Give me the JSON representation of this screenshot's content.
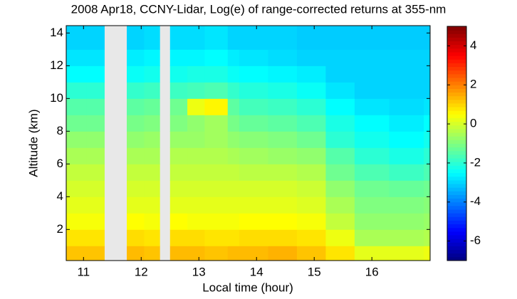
{
  "chart_data": {
    "type": "heatmap",
    "title": "2008 Apr18, CCNY-Lidar, Log(e) of range-corrected returns at 355-nm",
    "x_label": "Local time (hour)",
    "y_label": "Altitude (km)",
    "x_bins": [
      10.7,
      11.05,
      11.36,
      11.75,
      12.05,
      12.32,
      12.5,
      12.8,
      13.1,
      13.5,
      13.7,
      14.2,
      14.7,
      15.2,
      15.7,
      16.3,
      16.9,
      17.01
    ],
    "y_bins": [
      0.1,
      1,
      2,
      3,
      4,
      5,
      6,
      7,
      8,
      9,
      10,
      11,
      12,
      13,
      14.45
    ],
    "values": [
      [
        1.2,
        1.2,
        null,
        1.3,
        1.2,
        null,
        1.3,
        1.3,
        1.2,
        1.3,
        1.3,
        1.4,
        1.2,
        0.8,
        0.2,
        0.2,
        0.3
      ],
      [
        0.8,
        0.8,
        null,
        0.9,
        0.8,
        null,
        0.9,
        0.9,
        0.8,
        0.8,
        0.9,
        0.9,
        0.8,
        0.3,
        -0.5,
        -0.5,
        -0.4
      ],
      [
        0.4,
        0.4,
        null,
        0.5,
        0.4,
        null,
        0.5,
        0.4,
        0.4,
        0.4,
        0.5,
        0.5,
        0.4,
        -0.2,
        -0.8,
        -0.8,
        -0.7
      ],
      [
        0.2,
        0.2,
        null,
        0.2,
        0.2,
        null,
        0.2,
        0.2,
        0.2,
        0.2,
        0.2,
        0.2,
        0.1,
        -0.5,
        -1,
        -1,
        -0.9
      ],
      [
        0,
        0,
        null,
        0,
        0,
        null,
        0,
        0,
        0,
        0,
        0,
        0,
        -0.1,
        -0.8,
        -1.2,
        -1.3,
        -1.2
      ],
      [
        -0.2,
        -0.2,
        null,
        -0.2,
        -0.2,
        null,
        -0.2,
        -0.2,
        -0.2,
        -0.2,
        -0.3,
        -0.3,
        -0.4,
        -1.2,
        -1.6,
        -1.8,
        -1.6
      ],
      [
        -0.5,
        -0.5,
        null,
        -0.5,
        -0.5,
        null,
        -0.4,
        -0.4,
        -0.4,
        -0.5,
        -0.6,
        -0.7,
        -0.8,
        -1.5,
        -2,
        -2.2,
        -2
      ],
      [
        -0.8,
        -0.8,
        null,
        -0.8,
        -0.7,
        null,
        -0.7,
        -0.7,
        -0.6,
        -0.8,
        -0.9,
        -1,
        -1.2,
        -2,
        -2.3,
        -2.5,
        -2.3
      ],
      [
        -1.2,
        -1.2,
        null,
        -1.1,
        -1,
        null,
        -1,
        -0.8,
        -0.6,
        -1.1,
        -1.3,
        -1.4,
        -1.6,
        -2.2,
        -2.5,
        -2.7,
        -2.5
      ],
      [
        -1.5,
        -1.5,
        null,
        -1.4,
        -1.3,
        null,
        -1.2,
        0.3,
        0.6,
        -1.4,
        -1.7,
        -1.8,
        -2,
        -2.5,
        -2.8,
        -2.9,
        -2.8
      ],
      [
        -2,
        -2,
        null,
        -1.9,
        -1.8,
        null,
        -1.8,
        -1.7,
        -1.6,
        -1.9,
        -2.1,
        -2.2,
        -2.4,
        -2.8,
        -3,
        -3,
        -3
      ],
      [
        -2.5,
        -2.5,
        null,
        -2.4,
        -2.3,
        null,
        -2.3,
        -2.2,
        -2.2,
        -2.4,
        -2.5,
        -2.6,
        -2.7,
        -3,
        -3,
        -3,
        -3
      ],
      [
        -2.8,
        -2.8,
        null,
        -2.7,
        -2.6,
        null,
        -2.6,
        -2.6,
        -2.5,
        -2.7,
        -2.8,
        -2.9,
        -3,
        -3,
        -3,
        -3,
        -3
      ],
      [
        -3,
        -3,
        null,
        -3,
        -2.9,
        null,
        -2.9,
        -2.9,
        -2.8,
        -3,
        -3,
        -3,
        -3.1,
        -3.1,
        -3.1,
        -3.1,
        -3.1
      ]
    ],
    "xlim": [
      10.7,
      17.01
    ],
    "ylim": [
      0.1,
      14.45
    ],
    "xticks": [
      11,
      12,
      13,
      14,
      15,
      16
    ],
    "yticks": [
      2,
      4,
      6,
      8,
      10,
      12,
      14
    ],
    "clim": [
      -7,
      5
    ],
    "cticks": [
      -6,
      -4,
      -2,
      0,
      2,
      4
    ],
    "colormap": "jet",
    "missing_color": "#e8e8e8"
  }
}
